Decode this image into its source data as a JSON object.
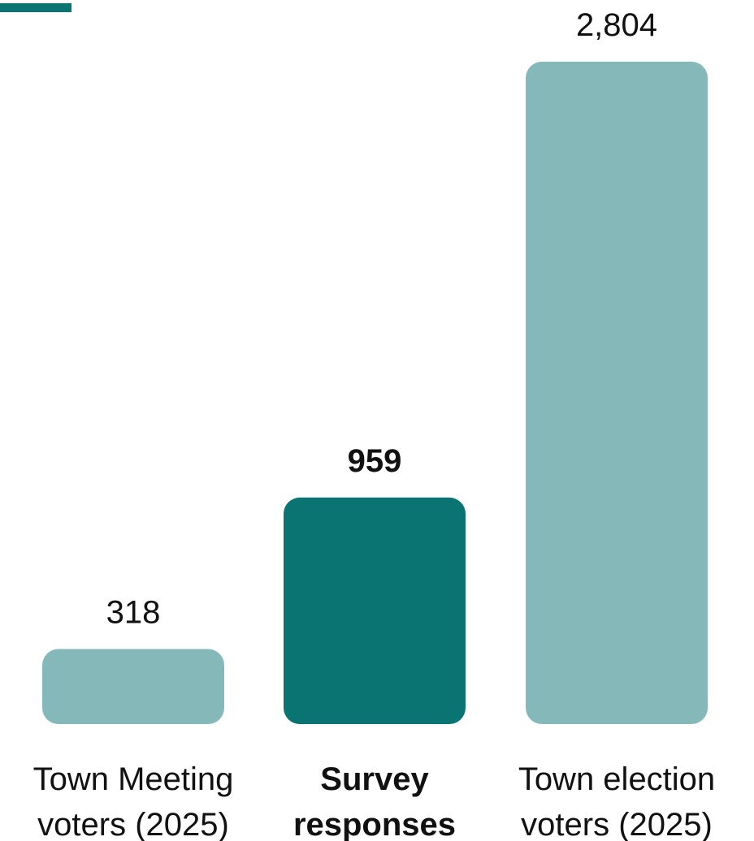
{
  "chart_data": {
    "type": "bar",
    "categories": [
      [
        "Town Meeting",
        "voters (2025)"
      ],
      [
        "Survey",
        "responses"
      ],
      [
        "Town election",
        "voters (2025)"
      ]
    ],
    "values": [
      318,
      959,
      2804
    ],
    "value_labels": [
      "318",
      "959",
      "2,804"
    ],
    "highlighted_index": 1,
    "colors": {
      "bar": "#85b9b9",
      "highlight": "#097472",
      "accent_line": "#097472"
    },
    "ylim": [
      0,
      2804
    ],
    "grid": false,
    "legend": "none"
  }
}
